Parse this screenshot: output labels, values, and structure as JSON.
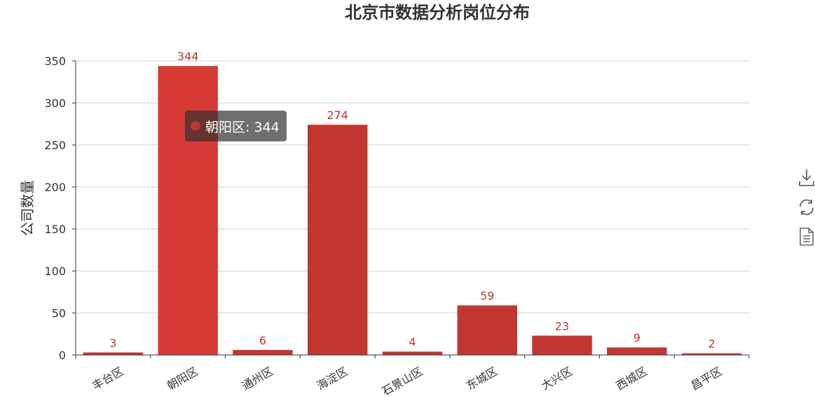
{
  "chart_data": {
    "type": "bar",
    "title": "北京市数据分析岗位分布",
    "xlabel": "",
    "ylabel": "公司数量",
    "categories": [
      "丰台区",
      "朝阳区",
      "通州区",
      "海淀区",
      "石景山区",
      "东城区",
      "大兴区",
      "西城区",
      "昌平区"
    ],
    "series": [
      {
        "values": [
          3,
          344,
          6,
          274,
          4,
          59,
          23,
          9,
          2
        ],
        "color": "#c23531"
      }
    ],
    "ylim": [
      0,
      350
    ],
    "yticks": [
      0,
      50,
      100,
      150,
      200,
      250,
      300,
      350
    ],
    "grid": true,
    "highlighted_category": "朝阳区",
    "highlight_color": "#d63b35"
  },
  "tooltip": {
    "text": "朝阳区: 344",
    "dot_color": "#c23531"
  },
  "toolbox": {
    "items": [
      {
        "name": "download-icon"
      },
      {
        "name": "refresh-icon"
      },
      {
        "name": "data-view-icon"
      }
    ],
    "color": "#666666"
  }
}
